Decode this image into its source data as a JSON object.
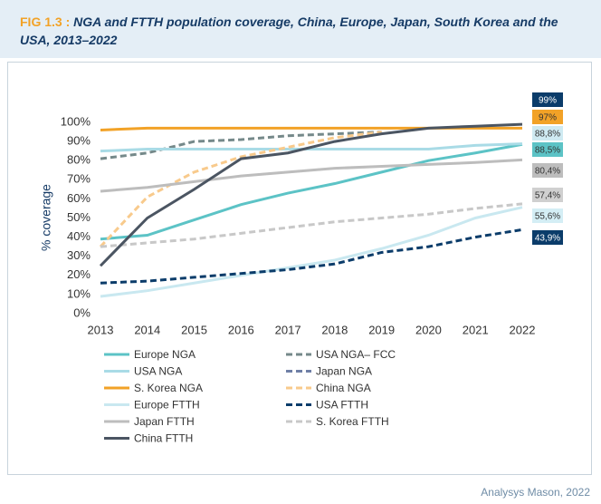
{
  "chart_data": {
    "type": "line",
    "figure_label": "FIG 1.3 :",
    "title": "NGA and FTTH population coverage, China, Europe, Japan, South Korea and the USA, 2013–2022",
    "y_label": "% coverage",
    "source": "Analysys Mason, 2022",
    "x": [
      2013,
      2014,
      2015,
      2016,
      2017,
      2018,
      2019,
      2020,
      2021,
      2022
    ],
    "xlim": [
      2013,
      2022
    ],
    "xticks": [
      2013,
      2014,
      2015,
      2016,
      2017,
      2018,
      2019,
      2020,
      2021,
      2022
    ],
    "ylim": [
      0,
      100
    ],
    "yticks": [
      {
        "value": 0,
        "label": "0%"
      },
      {
        "value": 10,
        "label": "10%"
      },
      {
        "value": 20,
        "label": "20%"
      },
      {
        "value": 30,
        "label": "30%"
      },
      {
        "value": 40,
        "label": "40%"
      },
      {
        "value": 50,
        "label": "50%"
      },
      {
        "value": 60,
        "label": "60%"
      },
      {
        "value": 70,
        "label": "70%"
      },
      {
        "value": 80,
        "label": "80%"
      },
      {
        "value": 90,
        "label": "90%"
      },
      {
        "value": 100,
        "label": "100%"
      }
    ],
    "grid": false,
    "series": [
      {
        "name": "Europe NGA",
        "color": "#5cc3c6",
        "dashed": false,
        "values": [
          39,
          41,
          49,
          57,
          63,
          68,
          74,
          80,
          84,
          88.5
        ],
        "value_labels": [
          null,
          null,
          null,
          null,
          null,
          null,
          null,
          null,
          null,
          "88,5%"
        ],
        "label_color": "#5cc3c6"
      },
      {
        "name": "USA NGA– FCC",
        "color": "#75898a",
        "dashed": true,
        "values": [
          81,
          84,
          90,
          91,
          93,
          94,
          95,
          null,
          null,
          null
        ]
      },
      {
        "name": "USA NGA",
        "color": "#a9dbe6",
        "dashed": false,
        "values": [
          85,
          86,
          86,
          86,
          86,
          86,
          86,
          86,
          88,
          88.8
        ],
        "value_labels": [
          null,
          null,
          null,
          null,
          null,
          null,
          null,
          null,
          null,
          "88,8%"
        ],
        "label_color": "#cfeaf2"
      },
      {
        "name": "Japan NGA",
        "color": "#6f7fa6",
        "dashed": true,
        "values": [
          null,
          null,
          null,
          null,
          null,
          null,
          null,
          null,
          null,
          null
        ]
      },
      {
        "name": "S. Korea NGA",
        "color": "#f2a227",
        "dashed": false,
        "values": [
          96,
          97,
          97,
          97,
          97,
          97,
          97,
          97,
          97,
          97
        ],
        "value_labels": [
          null,
          null,
          null,
          null,
          null,
          null,
          null,
          null,
          null,
          "97%"
        ],
        "label_color": "#f2a227"
      },
      {
        "name": "China NGA",
        "color": "#f8ca8c",
        "dashed": true,
        "values": [
          35,
          61,
          74,
          82,
          87,
          92,
          95,
          null,
          null,
          null
        ]
      },
      {
        "name": "Europe FTTH",
        "color": "#c9e8f0",
        "dashed": false,
        "values": [
          9,
          12,
          16,
          20,
          24,
          28,
          34,
          41,
          50,
          55.6
        ],
        "value_labels": [
          null,
          null,
          null,
          null,
          null,
          null,
          null,
          null,
          null,
          "55,6%"
        ],
        "label_color": "#d4eef5"
      },
      {
        "name": "USA FTTH",
        "color": "#0b3c6a",
        "dashed": true,
        "values": [
          16,
          17,
          19,
          21,
          23,
          26,
          32,
          35,
          40,
          43.9
        ],
        "value_labels": [
          null,
          null,
          null,
          null,
          null,
          null,
          null,
          null,
          null,
          "43,9%"
        ],
        "label_color": "#0b3c6a"
      },
      {
        "name": "Japan FTTH",
        "color": "#bdbdbd",
        "dashed": false,
        "values": [
          64,
          66,
          69,
          72,
          74,
          76,
          77,
          78,
          79,
          80.4
        ],
        "value_labels": [
          null,
          null,
          null,
          null,
          null,
          null,
          null,
          null,
          null,
          "80,4%"
        ],
        "label_color": "#bdbdbd"
      },
      {
        "name": "S. Korea FTTH",
        "color": "#c8c8c8",
        "dashed": true,
        "values": [
          35,
          37,
          39,
          42,
          45,
          48,
          50,
          52,
          55,
          57.4
        ],
        "value_labels": [
          null,
          null,
          null,
          null,
          null,
          null,
          null,
          null,
          null,
          "57,4%"
        ],
        "label_color": "#d0d0d0"
      },
      {
        "name": "China FTTH",
        "color": "#4b5562",
        "dashed": false,
        "values": [
          25,
          50,
          65,
          81,
          84,
          90,
          94,
          97,
          98,
          99
        ],
        "value_labels": [
          null,
          null,
          null,
          null,
          null,
          null,
          null,
          null,
          null,
          "99%"
        ],
        "label_color": "#0b3c6a"
      }
    ]
  }
}
